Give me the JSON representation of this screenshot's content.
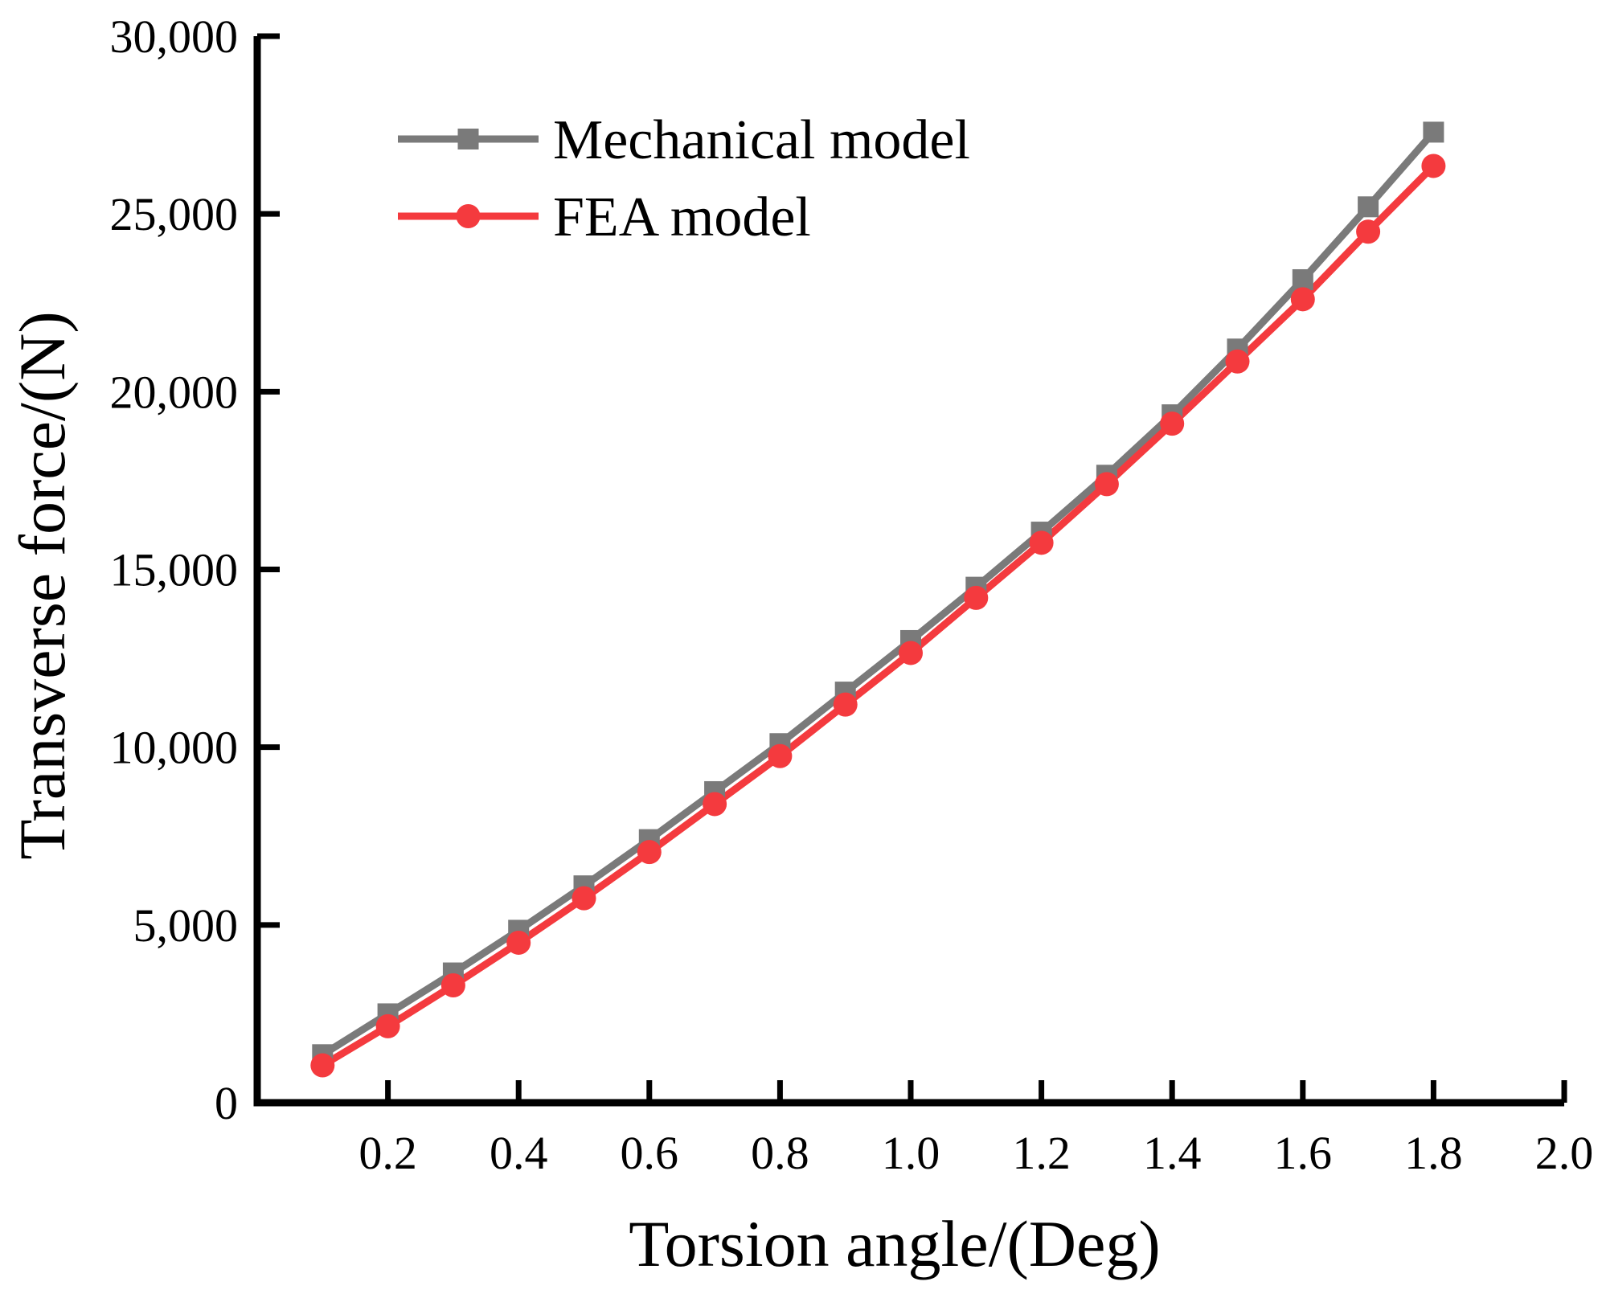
{
  "chart_data": {
    "type": "line",
    "title": "",
    "xlabel": "Torsion angle/(Deg)",
    "ylabel": "Transverse force/(N)",
    "xlim": [
      0,
      2.0
    ],
    "ylim": [
      0,
      30000
    ],
    "x_ticks": [
      0.2,
      0.4,
      0.6,
      0.8,
      1.0,
      1.2,
      1.4,
      1.6,
      1.8,
      2.0
    ],
    "x_tick_labels": [
      "0.2",
      "0.4",
      "0.6",
      "0.8",
      "1.0",
      "1.2",
      "1.4",
      "1.6",
      "1.8",
      "2.0"
    ],
    "y_ticks": [
      0,
      5000,
      10000,
      15000,
      20000,
      25000,
      30000
    ],
    "y_tick_labels": [
      "0",
      "5,000",
      "10,000",
      "15,000",
      "20,000",
      "25,000",
      "30,000"
    ],
    "grid": false,
    "legend_position": "top-left",
    "x": [
      0.1,
      0.2,
      0.3,
      0.4,
      0.5,
      0.6,
      0.7,
      0.8,
      0.9,
      1.0,
      1.1,
      1.2,
      1.3,
      1.4,
      1.5,
      1.6,
      1.7,
      1.8
    ],
    "series": [
      {
        "name": "Mechanical model",
        "color": "#7a7a7a",
        "marker": "square",
        "values": [
          1350,
          2500,
          3650,
          4850,
          6100,
          7400,
          8750,
          10100,
          11550,
          13000,
          14500,
          16050,
          17650,
          19350,
          21200,
          23150,
          25200,
          27300
        ]
      },
      {
        "name": "FEA model",
        "color": "#f43a3e",
        "marker": "circle",
        "values": [
          1050,
          2150,
          3300,
          4500,
          5750,
          7050,
          8400,
          9750,
          11200,
          12650,
          14200,
          15750,
          17400,
          19100,
          20850,
          22600,
          24500,
          26350
        ]
      }
    ]
  }
}
